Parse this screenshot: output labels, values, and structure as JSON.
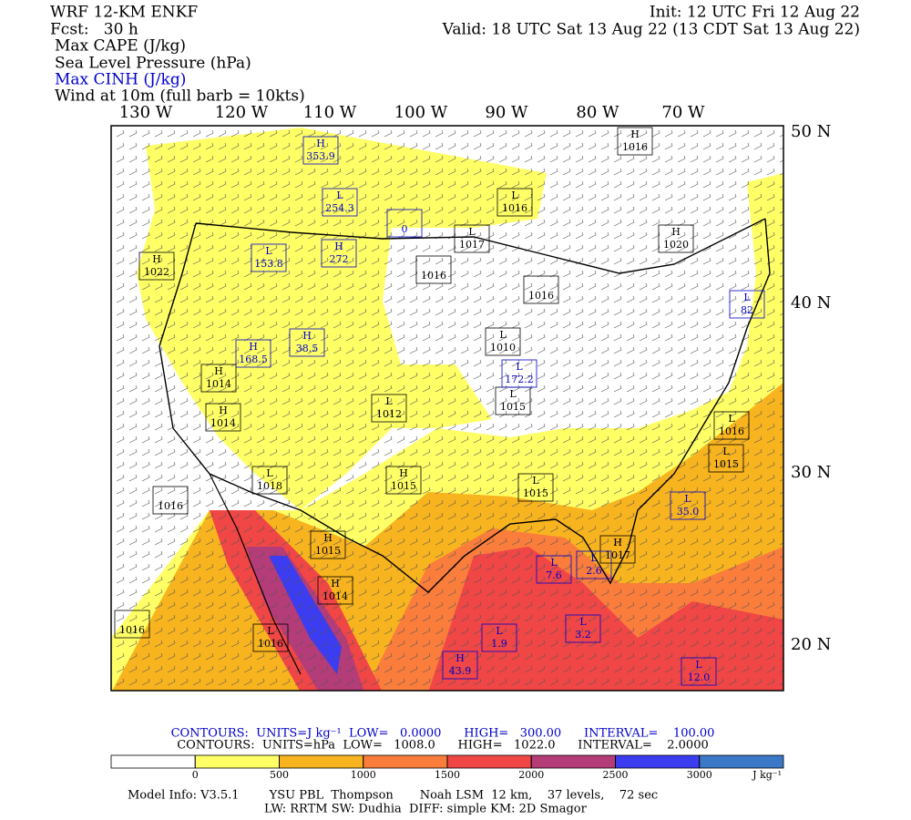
{
  "header": {
    "model": "WRF 12-KM ENKF",
    "forecast": "Fcst:   30 h",
    "init": "Init: 12 UTC Fri 12 Aug 22",
    "valid": "Valid: 18 UTC Sat 13 Aug 22 (13 CDT Sat 13 Aug 22)",
    "fields": [
      "Max CAPE (J/kg)",
      "Sea Level Pressure (hPa)",
      "Max CINH (J/kg)",
      "Wind at 10m (full barb = 10kts)"
    ]
  },
  "map": {
    "lon_labels": [
      "130 W",
      "120 W",
      "110 W",
      "100 W",
      "90 W",
      "80 W",
      "70 W"
    ],
    "lat_labels": [
      "50 N",
      "40 N",
      "30 N",
      "20 N"
    ],
    "pressure_centers": [
      {
        "kind": "H",
        "value": "1016"
      },
      {
        "kind": "L",
        "value": "1016"
      },
      {
        "kind": "L",
        "value": "1017"
      },
      {
        "kind": "H",
        "value": "1020"
      },
      {
        "value": "1016"
      },
      {
        "kind": "H",
        "value": "1022"
      },
      {
        "value": "1016"
      },
      {
        "kind": "L",
        "value": "1010"
      },
      {
        "kind": "H",
        "value": "1014"
      },
      {
        "kind": "H",
        "value": "1014"
      },
      {
        "kind": "L",
        "value": "1015"
      },
      {
        "kind": "L",
        "value": "1012"
      },
      {
        "kind": "L",
        "value": "1016"
      },
      {
        "kind": "L",
        "value": "1015"
      },
      {
        "kind": "L",
        "value": "1018"
      },
      {
        "kind": "H",
        "value": "1015"
      },
      {
        "kind": "L",
        "value": "1015"
      },
      {
        "value": "1016"
      },
      {
        "kind": "H",
        "value": "1015"
      },
      {
        "kind": "H",
        "value": "1017"
      },
      {
        "kind": "H",
        "value": "1014"
      },
      {
        "value": "1016"
      },
      {
        "kind": "L",
        "value": "1016"
      }
    ],
    "cinh_centers": [
      {
        "kind": "H",
        "value": "353.9"
      },
      {
        "kind": "L",
        "value": "254.3"
      },
      {
        "value": "0"
      },
      {
        "kind": "L",
        "value": "153.8"
      },
      {
        "kind": "H",
        "value": "272"
      },
      {
        "kind": "L",
        "value": "82"
      },
      {
        "kind": "H",
        "value": "168.5"
      },
      {
        "kind": "H",
        "value": "38.5"
      },
      {
        "kind": "L",
        "value": "172.2"
      },
      {
        "kind": "L",
        "value": "35.0"
      },
      {
        "kind": "L",
        "value": "7.6"
      },
      {
        "kind": "L",
        "value": "2.6"
      },
      {
        "kind": "L",
        "value": "3.2"
      },
      {
        "kind": "L",
        "value": "1.9"
      },
      {
        "kind": "H",
        "value": "43.9"
      },
      {
        "kind": "L",
        "value": "12.0"
      }
    ]
  },
  "contours": {
    "cape": "CONTOURS:  UNITS=J kg⁻¹  LOW=   0.0000      HIGH=   300.00      INTERVAL=    100.00",
    "slp": "CONTOURS:  UNITS=hPa  LOW=   1008.0      HIGH=   1022.0      INTERVAL=    2.0000"
  },
  "colorbar": {
    "ticks": [
      0,
      500,
      1000,
      1500,
      2000,
      2500,
      3000
    ],
    "unit": "J kg⁻¹",
    "colors": [
      "#ffffff",
      "#ffff66",
      "#f8b41e",
      "#fa7d3c",
      "#f04646",
      "#b43c78",
      "#3c3cf0",
      "#3c78c8"
    ]
  },
  "footer": {
    "line1": "Model Info: V3.5.1        YSU PBL  Thompson       Noah LSM  12 km,    37 levels,    72 sec",
    "line2": "LW: RRTM SW: Dudhia  DIFF: simple KM: 2D Smagor"
  }
}
